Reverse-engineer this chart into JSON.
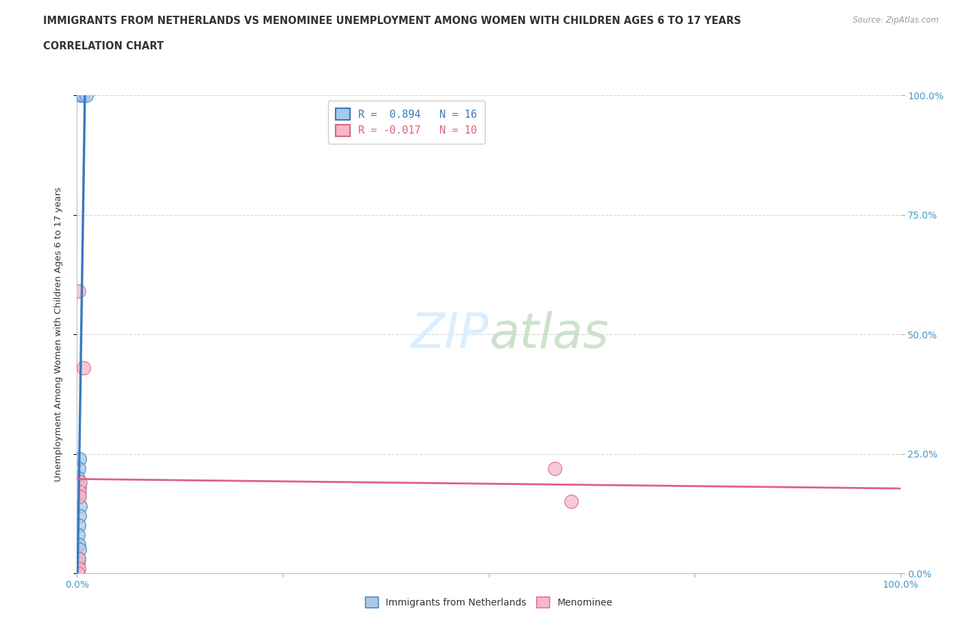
{
  "title_line1": "IMMIGRANTS FROM NETHERLANDS VS MENOMINEE UNEMPLOYMENT AMONG WOMEN WITH CHILDREN AGES 6 TO 17 YEARS",
  "title_line2": "CORRELATION CHART",
  "source": "Source: ZipAtlas.com",
  "ylabel": "Unemployment Among Women with Children Ages 6 to 17 years",
  "xlim": [
    0.0,
    1.0
  ],
  "ylim": [
    0.0,
    1.0
  ],
  "xtick_positions": [
    0.0,
    0.25,
    0.5,
    0.75,
    1.0
  ],
  "xtick_labels": [
    "0.0%",
    "",
    "",
    "",
    "100.0%"
  ],
  "ytick_positions": [
    0.0,
    0.25,
    0.5,
    0.75,
    1.0
  ],
  "right_ytick_labels": [
    "0.0%",
    "25.0%",
    "50.0%",
    "75.0%",
    "100.0%"
  ],
  "blue_scatter_x": [
    0.004,
    0.007,
    0.011,
    0.003,
    0.002,
    0.001,
    0.003,
    0.002,
    0.004,
    0.003,
    0.002,
    0.001,
    0.002,
    0.003,
    0.002,
    0.001
  ],
  "blue_scatter_y": [
    1.0,
    1.0,
    1.0,
    0.24,
    0.22,
    0.2,
    0.18,
    0.16,
    0.14,
    0.12,
    0.1,
    0.08,
    0.06,
    0.05,
    0.03,
    0.02
  ],
  "pink_scatter_x": [
    0.002,
    0.008,
    0.004,
    0.003,
    0.58,
    0.003,
    0.6,
    0.002,
    0.002,
    0.001
  ],
  "pink_scatter_y": [
    0.59,
    0.43,
    0.19,
    0.17,
    0.22,
    0.16,
    0.15,
    0.03,
    0.01,
    0.0
  ],
  "blue_R": 0.894,
  "blue_N": 16,
  "pink_R": -0.017,
  "pink_N": 10,
  "blue_color": "#a8c8e8",
  "pink_color": "#f5b8c8",
  "blue_line_color": "#3a7abf",
  "pink_line_color": "#e06080",
  "title_color": "#333333",
  "axis_color": "#4499cc",
  "watermark_color": "#daeeff",
  "background_color": "#ffffff",
  "grid_color": "#cccccc",
  "legend_label_blue": "Immigrants from Netherlands",
  "legend_label_pink": "Menominee"
}
